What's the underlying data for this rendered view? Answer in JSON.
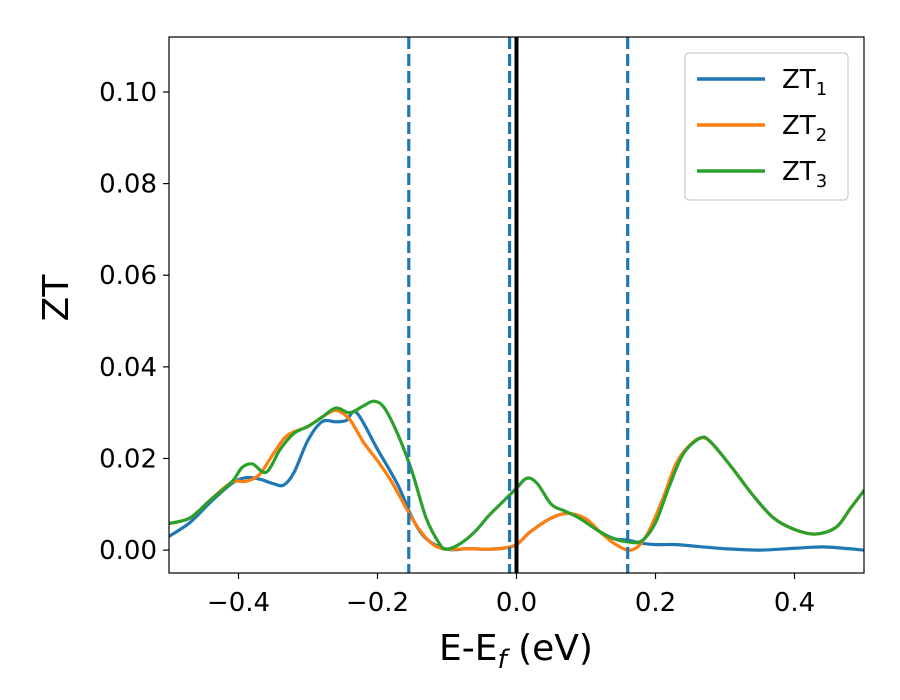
{
  "chart_data": {
    "type": "line",
    "xlabel": {
      "base": "E-E",
      "sub": "f",
      "suffix": " (eV)"
    },
    "ylabel": "ZT",
    "xlim": [
      -0.5,
      0.5
    ],
    "ylim": [
      -0.005,
      0.112
    ],
    "x_ticks": [
      -0.4,
      -0.2,
      0.0,
      0.2,
      0.4
    ],
    "x_tick_labels": [
      "−0.4",
      "−0.2",
      "0.0",
      "0.2",
      "0.4"
    ],
    "y_ticks": [
      0.0,
      0.02,
      0.04,
      0.06,
      0.08,
      0.1
    ],
    "y_tick_labels": [
      "0.00",
      "0.02",
      "0.04",
      "0.06",
      "0.08",
      "0.10"
    ],
    "grid": false,
    "legend_position": "top-right",
    "reference_lines": [
      {
        "x": -0.155,
        "style": "dashed",
        "color": "#1f77b4"
      },
      {
        "x": -0.01,
        "style": "dashed",
        "color": "#1f77b4"
      },
      {
        "x": 0.0,
        "style": "solid",
        "color": "#000000"
      },
      {
        "x": 0.16,
        "style": "dashed",
        "color": "#1f77b4"
      }
    ],
    "series": [
      {
        "name": "ZT",
        "name_sub": "1",
        "color": "#1f77b4",
        "points": [
          [
            -0.5,
            0.003
          ],
          [
            -0.47,
            0.006
          ],
          [
            -0.44,
            0.0105
          ],
          [
            -0.41,
            0.0145
          ],
          [
            -0.39,
            0.0158
          ],
          [
            -0.37,
            0.0155
          ],
          [
            -0.35,
            0.0145
          ],
          [
            -0.335,
            0.0142
          ],
          [
            -0.32,
            0.017
          ],
          [
            -0.3,
            0.024
          ],
          [
            -0.28,
            0.028
          ],
          [
            -0.26,
            0.028
          ],
          [
            -0.245,
            0.0283
          ],
          [
            -0.23,
            0.03
          ],
          [
            -0.2,
            0.022
          ],
          [
            -0.17,
            0.014
          ],
          [
            -0.15,
            0.007
          ],
          [
            -0.13,
            0.0025
          ],
          [
            -0.1,
            0.0002
          ],
          [
            -0.07,
            0.0003
          ],
          [
            -0.04,
            0.0002
          ],
          [
            -0.02,
            0.0004
          ],
          [
            0.0,
            0.0012
          ],
          [
            0.02,
            0.004
          ],
          [
            0.05,
            0.007
          ],
          [
            0.075,
            0.008
          ],
          [
            0.1,
            0.0065
          ],
          [
            0.12,
            0.004
          ],
          [
            0.14,
            0.0025
          ],
          [
            0.16,
            0.0022
          ],
          [
            0.18,
            0.0015
          ],
          [
            0.2,
            0.0012
          ],
          [
            0.23,
            0.0012
          ],
          [
            0.26,
            0.0008
          ],
          [
            0.3,
            0.0003
          ],
          [
            0.35,
            0.0
          ],
          [
            0.4,
            0.0004
          ],
          [
            0.44,
            0.0007
          ],
          [
            0.47,
            0.0004
          ],
          [
            0.5,
            0.0
          ]
        ]
      },
      {
        "name": "ZT",
        "name_sub": "2",
        "color": "#ff7f0e",
        "points": [
          [
            -0.5,
            0.0058
          ],
          [
            -0.47,
            0.007
          ],
          [
            -0.44,
            0.011
          ],
          [
            -0.41,
            0.0148
          ],
          [
            -0.39,
            0.015
          ],
          [
            -0.37,
            0.0165
          ],
          [
            -0.35,
            0.021
          ],
          [
            -0.33,
            0.025
          ],
          [
            -0.3,
            0.027
          ],
          [
            -0.28,
            0.029
          ],
          [
            -0.26,
            0.0305
          ],
          [
            -0.24,
            0.0285
          ],
          [
            -0.22,
            0.0235
          ],
          [
            -0.2,
            0.0195
          ],
          [
            -0.18,
            0.015
          ],
          [
            -0.16,
            0.0095
          ],
          [
            -0.14,
            0.0045
          ],
          [
            -0.12,
            0.0012
          ],
          [
            -0.1,
            0.0002
          ],
          [
            -0.07,
            0.0003
          ],
          [
            -0.04,
            0.0002
          ],
          [
            -0.02,
            0.0004
          ],
          [
            0.0,
            0.0012
          ],
          [
            0.02,
            0.004
          ],
          [
            0.05,
            0.007
          ],
          [
            0.075,
            0.008
          ],
          [
            0.1,
            0.0068
          ],
          [
            0.12,
            0.004
          ],
          [
            0.14,
            0.0015
          ],
          [
            0.16,
            0.0
          ],
          [
            0.175,
            0.0008
          ],
          [
            0.19,
            0.004
          ],
          [
            0.21,
            0.011
          ],
          [
            0.23,
            0.019
          ],
          [
            0.25,
            0.023
          ],
          [
            0.265,
            0.0245
          ],
          [
            0.28,
            0.0235
          ],
          [
            0.31,
            0.018
          ],
          [
            0.34,
            0.012
          ],
          [
            0.37,
            0.007
          ],
          [
            0.4,
            0.0045
          ],
          [
            0.43,
            0.0035
          ],
          [
            0.46,
            0.005
          ],
          [
            0.48,
            0.009
          ],
          [
            0.5,
            0.013
          ]
        ]
      },
      {
        "name": "ZT",
        "name_sub": "3",
        "color": "#2ca02c",
        "points": [
          [
            -0.5,
            0.0058
          ],
          [
            -0.47,
            0.007
          ],
          [
            -0.44,
            0.011
          ],
          [
            -0.41,
            0.0148
          ],
          [
            -0.395,
            0.018
          ],
          [
            -0.38,
            0.0188
          ],
          [
            -0.36,
            0.017
          ],
          [
            -0.34,
            0.022
          ],
          [
            -0.32,
            0.0255
          ],
          [
            -0.3,
            0.027
          ],
          [
            -0.28,
            0.029
          ],
          [
            -0.26,
            0.031
          ],
          [
            -0.24,
            0.03
          ],
          [
            -0.22,
            0.0315
          ],
          [
            -0.205,
            0.0325
          ],
          [
            -0.19,
            0.031
          ],
          [
            -0.17,
            0.025
          ],
          [
            -0.15,
            0.017
          ],
          [
            -0.13,
            0.007
          ],
          [
            -0.11,
            0.0012
          ],
          [
            -0.1,
            0.0002
          ],
          [
            -0.08,
            0.0015
          ],
          [
            -0.06,
            0.004
          ],
          [
            -0.04,
            0.0075
          ],
          [
            -0.02,
            0.0105
          ],
          [
            0.0,
            0.0135
          ],
          [
            0.015,
            0.0157
          ],
          [
            0.03,
            0.0145
          ],
          [
            0.05,
            0.01
          ],
          [
            0.07,
            0.0085
          ],
          [
            0.09,
            0.007
          ],
          [
            0.12,
            0.004
          ],
          [
            0.14,
            0.0025
          ],
          [
            0.16,
            0.0018
          ],
          [
            0.18,
            0.002
          ],
          [
            0.2,
            0.006
          ],
          [
            0.22,
            0.014
          ],
          [
            0.24,
            0.021
          ],
          [
            0.265,
            0.0245
          ],
          [
            0.28,
            0.0235
          ],
          [
            0.31,
            0.018
          ],
          [
            0.34,
            0.012
          ],
          [
            0.37,
            0.007
          ],
          [
            0.4,
            0.0045
          ],
          [
            0.43,
            0.0035
          ],
          [
            0.46,
            0.005
          ],
          [
            0.48,
            0.009
          ],
          [
            0.5,
            0.013
          ]
        ]
      }
    ]
  }
}
